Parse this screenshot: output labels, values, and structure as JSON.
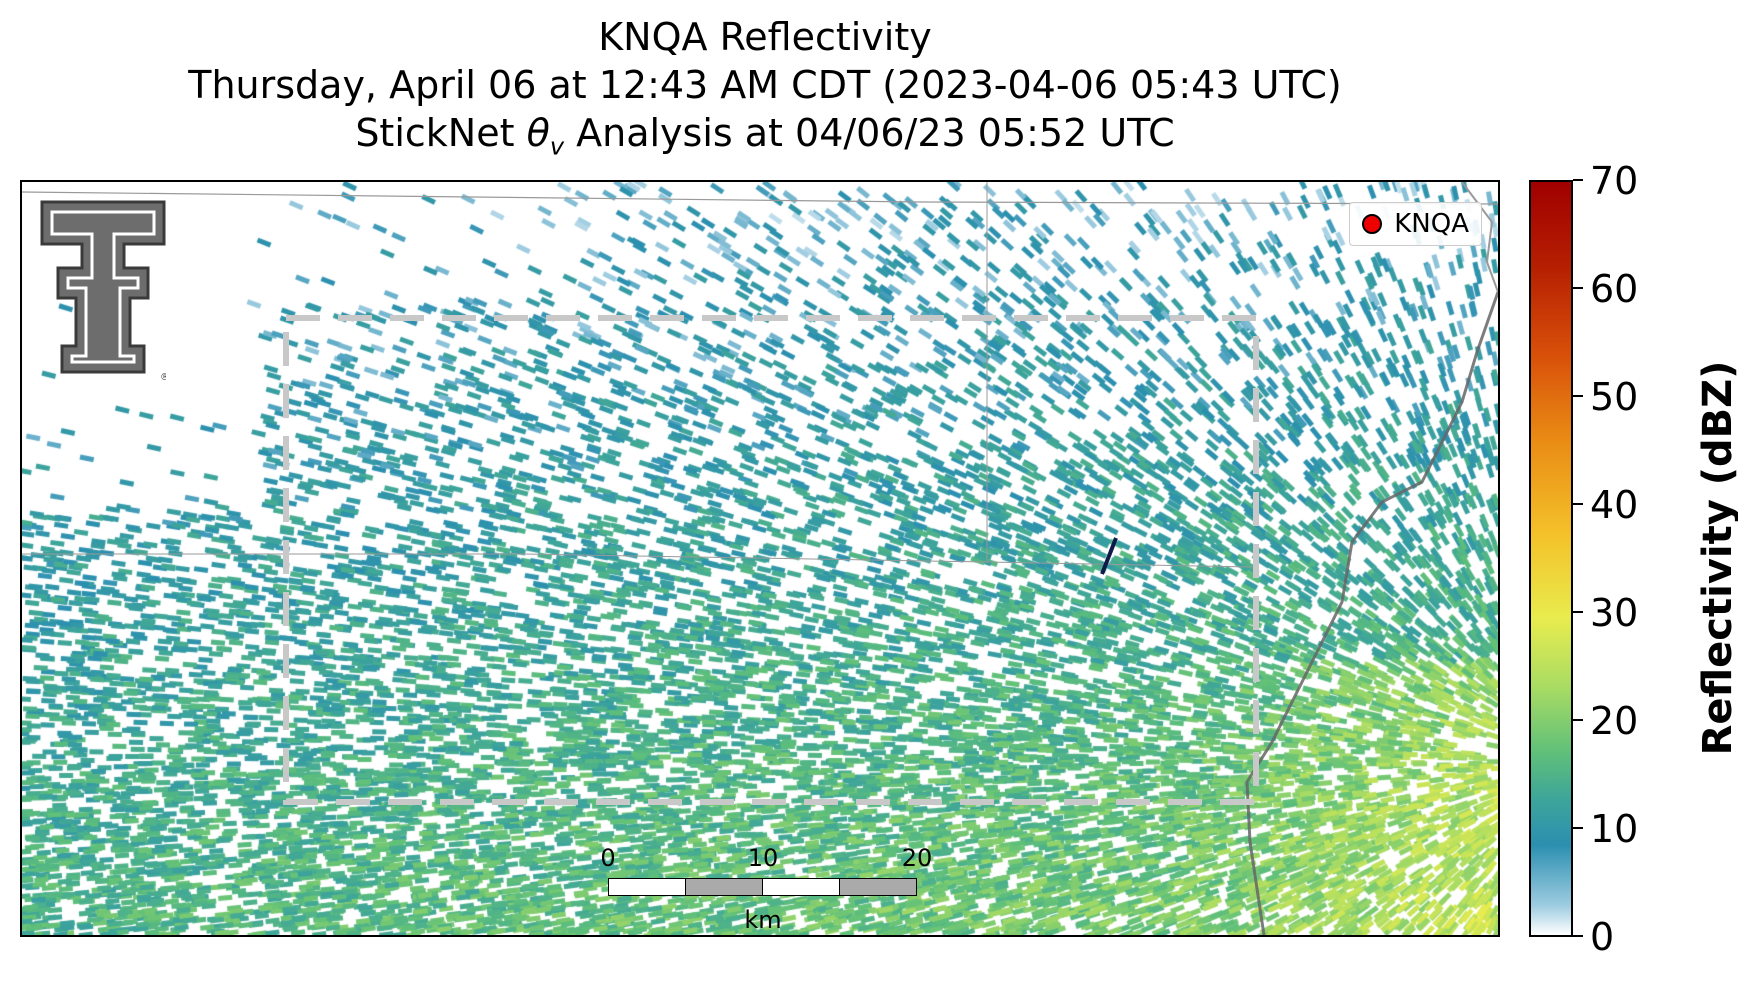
{
  "title": {
    "line1": "KNQA Reflectivity",
    "line2": "Thursday, April 06 at 12:43 AM CDT (2023-04-06 05:43 UTC)",
    "line3_prefix": "StickNet ",
    "line3_symbol": "θ",
    "line3_sub": "v",
    "line3_suffix": " Analysis at 04/06/23 05:52 UTC"
  },
  "legend": {
    "label": "KNQA",
    "marker_color": "#e00000"
  },
  "logo": {
    "icon": "texas-tech-double-t-logo",
    "text": "®"
  },
  "scale_bar": {
    "ticks": [
      "0",
      "10",
      "20"
    ],
    "unit": "km"
  },
  "colorbar": {
    "label": "Reflectivity (dBZ)",
    "ticks": [
      "0",
      "10",
      "20",
      "30",
      "40",
      "50",
      "60",
      "70"
    ],
    "min": 0,
    "max": 70
  },
  "colors": {
    "analysis_box": "#cccccc",
    "boundary": "#555555",
    "state_line": "#888888"
  }
}
